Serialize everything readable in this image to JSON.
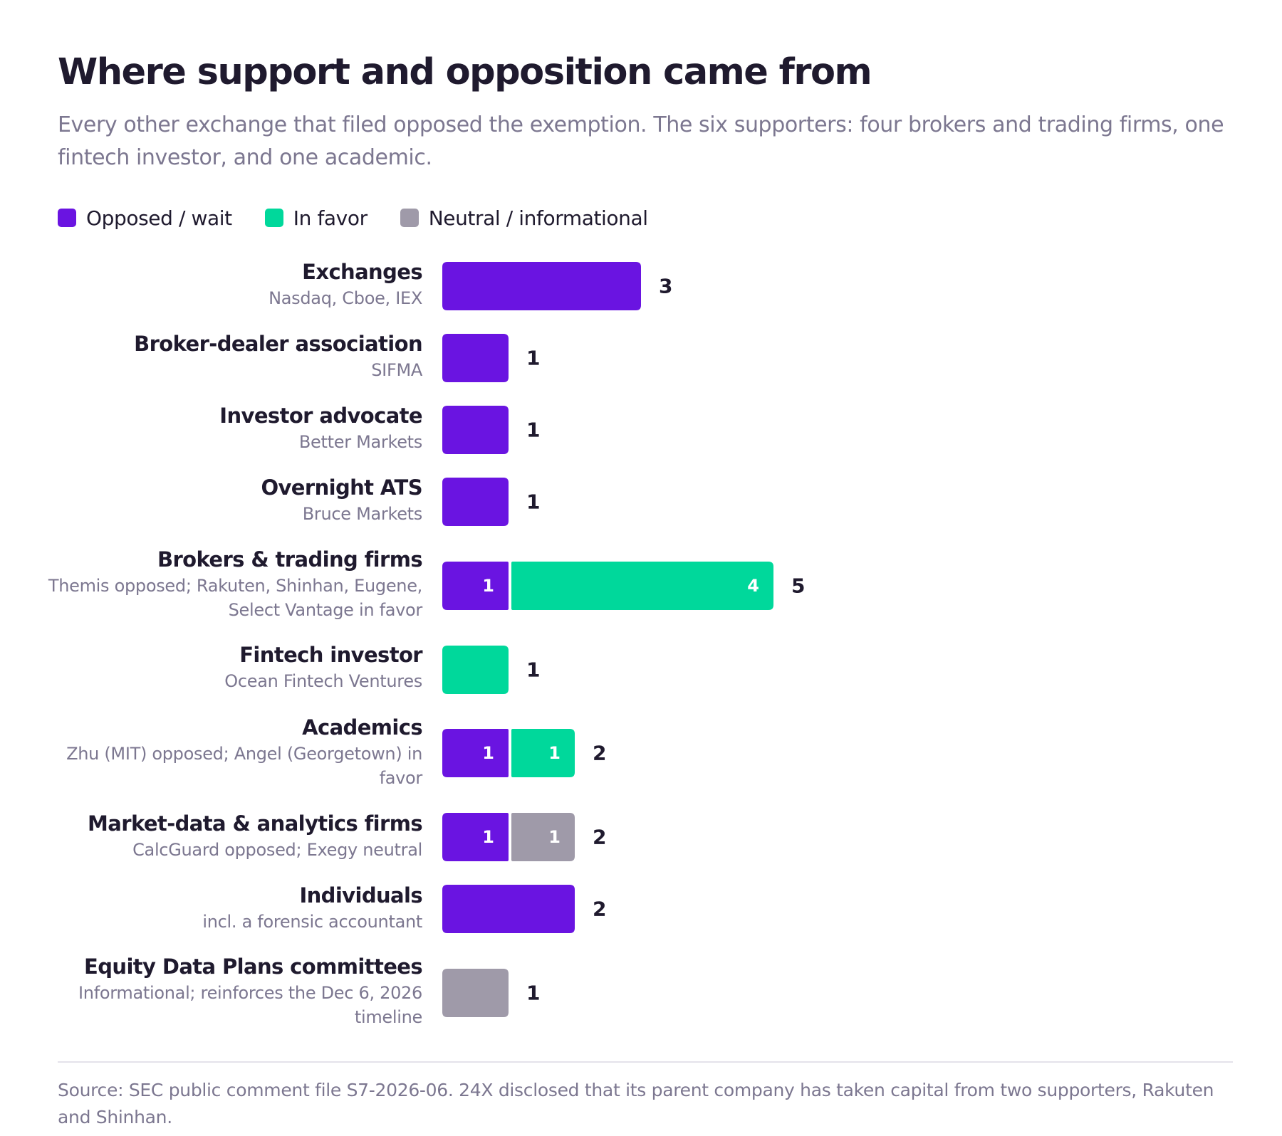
{
  "title": "Where support and opposition came from",
  "subtitle": "Every other exchange that filed opposed the exemption. The six supporters: four brokers and trading firms, one fintech investor, and one academic.",
  "legend": [
    {
      "label": "Opposed / wait",
      "color": "#6a14e1"
    },
    {
      "label": "In favor",
      "color": "#00d89b"
    },
    {
      "label": "Neutral / informational",
      "color": "#9f9aa9"
    }
  ],
  "chart_data": {
    "type": "bar",
    "orientation": "horizontal",
    "stacked": true,
    "categories": [
      {
        "name": "Exchanges",
        "detail": "Nasdaq, Cboe, IEX",
        "opposed": 3,
        "favor": 0,
        "neutral": 0,
        "total": 3
      },
      {
        "name": "Broker-dealer association",
        "detail": "SIFMA",
        "opposed": 1,
        "favor": 0,
        "neutral": 0,
        "total": 1
      },
      {
        "name": "Investor advocate",
        "detail": "Better Markets",
        "opposed": 1,
        "favor": 0,
        "neutral": 0,
        "total": 1
      },
      {
        "name": "Overnight ATS",
        "detail": "Bruce Markets",
        "opposed": 1,
        "favor": 0,
        "neutral": 0,
        "total": 1
      },
      {
        "name": "Brokers & trading firms",
        "detail": "Themis opposed; Rakuten, Shinhan, Eugene, Select Vantage in favor",
        "opposed": 1,
        "favor": 4,
        "neutral": 0,
        "total": 5
      },
      {
        "name": "Fintech investor",
        "detail": "Ocean Fintech Ventures",
        "opposed": 0,
        "favor": 1,
        "neutral": 0,
        "total": 1
      },
      {
        "name": "Academics",
        "detail": "Zhu (MIT) opposed; Angel (Georgetown) in favor",
        "opposed": 1,
        "favor": 1,
        "neutral": 0,
        "total": 2
      },
      {
        "name": "Market-data & analytics firms",
        "detail": "CalcGuard opposed; Exegy neutral",
        "opposed": 1,
        "favor": 0,
        "neutral": 1,
        "total": 2
      },
      {
        "name": "Individuals",
        "detail": "incl. a forensic accountant",
        "opposed": 2,
        "favor": 0,
        "neutral": 0,
        "total": 2
      },
      {
        "name": "Equity Data Plans committees",
        "detail": "Informational; reinforces the Dec 6, 2026 timeline",
        "opposed": 0,
        "favor": 0,
        "neutral": 1,
        "total": 1
      }
    ],
    "series": [
      {
        "name": "Opposed / wait",
        "key": "opposed",
        "color": "#6a14e1"
      },
      {
        "name": "In favor",
        "key": "favor",
        "color": "#00d89b"
      },
      {
        "name": "Neutral / informational",
        "key": "neutral",
        "color": "#9f9aa9"
      }
    ],
    "xlim": [
      0,
      5
    ],
    "grid": false,
    "legend_position": "top-left"
  },
  "source": "Source: SEC public comment file S7-2026-06. 24X disclosed that its parent company has taken capital from two supporters, Rakuten and Shinhan."
}
